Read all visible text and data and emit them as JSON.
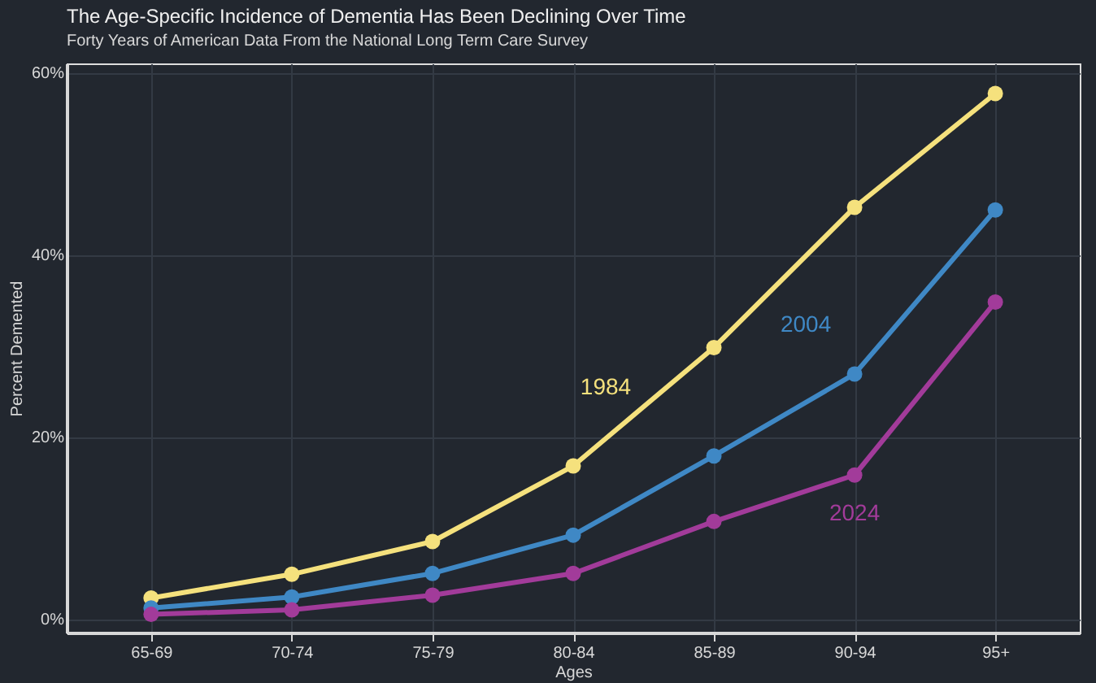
{
  "chart_data": {
    "type": "line",
    "title": "The Age-Specific Incidence of Dementia Has Been Declining Over Time",
    "subtitle": "Forty Years of American Data From the National Long Term Care Survey",
    "xlabel": "Ages",
    "ylabel": "Percent Demented",
    "categories": [
      "65-69",
      "70-74",
      "75-79",
      "80-84",
      "85-89",
      "90-94",
      "95+"
    ],
    "series": [
      {
        "name": "1984",
        "color": "#f5e17d",
        "values": [
          2.3,
          4.9,
          8.5,
          16.8,
          29.8,
          45.2,
          57.7
        ]
      },
      {
        "name": "2004",
        "color": "#3f88c5",
        "values": [
          1.2,
          2.4,
          5.0,
          9.2,
          17.9,
          26.9,
          44.9
        ]
      },
      {
        "name": "2024",
        "color": "#a23b9a",
        "values": [
          0.5,
          1.0,
          2.6,
          5.0,
          10.7,
          15.8,
          34.8
        ]
      }
    ],
    "ylim": [
      -1.5,
      61
    ],
    "yticks": [
      {
        "value": 0,
        "label": "0%"
      },
      {
        "value": 20,
        "label": "20%"
      },
      {
        "value": 40,
        "label": "40%"
      },
      {
        "value": 60,
        "label": "60%"
      }
    ],
    "grid": true,
    "marker": "circle",
    "line_style": "solid"
  }
}
